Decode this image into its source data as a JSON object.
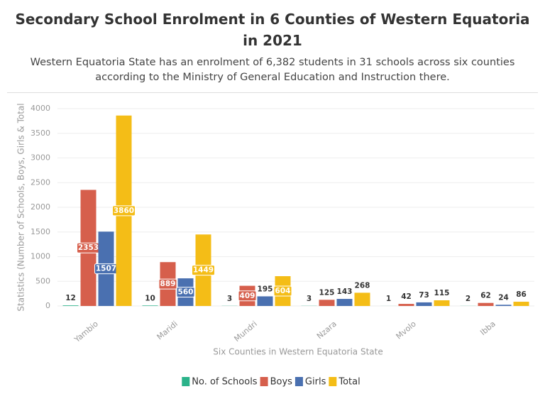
{
  "chart_data": {
    "type": "bar",
    "title": "Secondary School Enrolment in 6 Counties of Western Equatoria in 2021",
    "subtitle": "Western Equatoria State has an enrolment of 6,382 students in 31 schools across six counties according to the Ministry of General Education and Instruction there.",
    "x_label": "Six Counties in Western Equatoria State",
    "y_label": "Statistics (Number of Schools, Boys, Girls & Total",
    "categories": [
      "Yambio",
      "Maridi",
      "Mundri",
      "Nzara",
      "Mvolo",
      "Ibba"
    ],
    "series": [
      {
        "name": "No. of Schools",
        "color": "#2bb38a",
        "values": [
          12,
          10,
          3,
          3,
          1,
          2
        ]
      },
      {
        "name": "Boys",
        "color": "#d65f4c",
        "values": [
          2353,
          889,
          409,
          125,
          42,
          62
        ]
      },
      {
        "name": "Girls",
        "color": "#4a70b0",
        "values": [
          1507,
          560,
          195,
          143,
          73,
          24
        ]
      },
      {
        "name": "Total",
        "color": "#f4bd17",
        "values": [
          3860,
          1449,
          604,
          268,
          115,
          86
        ]
      }
    ],
    "ylim": [
      0,
      4000
    ],
    "yticks": [
      0,
      500,
      1000,
      1500,
      2000,
      2500,
      3000,
      3500,
      4000
    ],
    "grid": true,
    "legend": "bottom"
  }
}
